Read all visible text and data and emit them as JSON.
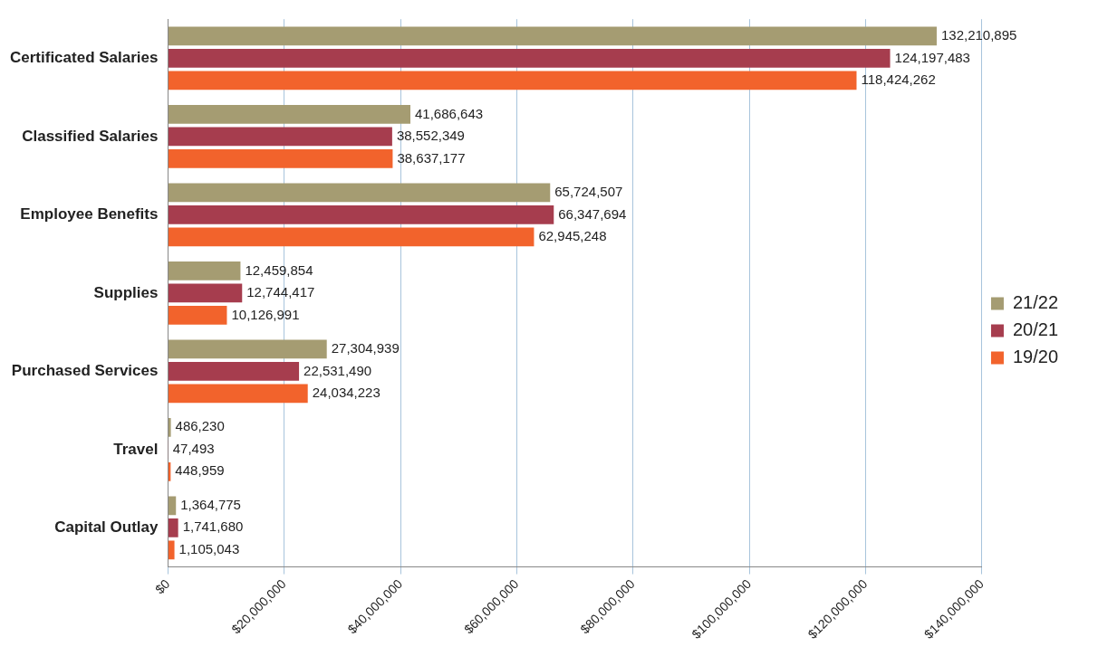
{
  "chart_data": {
    "type": "bar",
    "orientation": "horizontal",
    "categories": [
      "Certificated Salaries",
      "Classified Salaries",
      "Employee Benefits",
      "Supplies",
      "Purchased Services",
      "Travel",
      "Capital Outlay"
    ],
    "series": [
      {
        "name": "21/22",
        "color": "#a59c72",
        "values": [
          132210895,
          41686643,
          65724507,
          12459854,
          27304939,
          486230,
          1364775
        ],
        "value_labels": [
          "132,210,895",
          "41,686,643",
          "65,724,507",
          "12,459,854",
          "27,304,939",
          "486,230",
          "1,364,775"
        ]
      },
      {
        "name": "20/21",
        "color": "#a63d4e",
        "values": [
          124197483,
          38552349,
          66347694,
          12744417,
          22531490,
          47493,
          1741680
        ],
        "value_labels": [
          "124,197,483",
          "38,552,349",
          "66,347,694",
          "12,744,417",
          "22,531,490",
          "47,493",
          "1,741,680"
        ]
      },
      {
        "name": "19/20",
        "color": "#f2632c",
        "values": [
          118424262,
          38637177,
          62945248,
          10126991,
          24034223,
          448959,
          1105043
        ],
        "value_labels": [
          "118,424,262",
          "38,637,177",
          "62,945,248",
          "10,126,991",
          "24,034,223",
          "448,959",
          "1,105,043"
        ]
      }
    ],
    "xlim": [
      0,
      140000000
    ],
    "xticks": [
      {
        "value": 0,
        "label": "$0"
      },
      {
        "value": 20000000,
        "label": "$20,000,000"
      },
      {
        "value": 40000000,
        "label": "$40,000,000"
      },
      {
        "value": 60000000,
        "label": "$60,000,000"
      },
      {
        "value": 80000000,
        "label": "$80,000,000"
      },
      {
        "value": 100000000,
        "label": "$100,000,000"
      },
      {
        "value": 120000000,
        "label": "$120,000,000"
      },
      {
        "value": 140000000,
        "label": "$140,000,000"
      }
    ],
    "grid": "x",
    "legend": "right"
  }
}
